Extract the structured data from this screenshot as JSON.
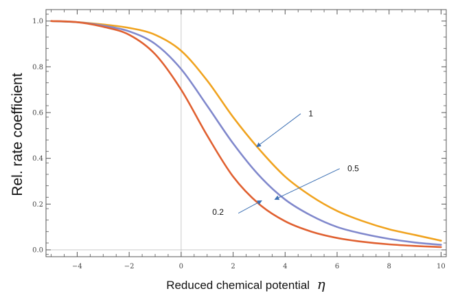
{
  "chart_data": {
    "type": "line",
    "xlabel": "Reduced chemical potential",
    "xlabel_symbol": "η",
    "ylabel": "Rel. rate coefficient",
    "xlim": [
      -5.2,
      10.2
    ],
    "ylim": [
      -0.03,
      1.05
    ],
    "x_ticks": [
      -4,
      -2,
      0,
      2,
      4,
      6,
      8,
      10
    ],
    "x_tick_labels": [
      "−4",
      "−2",
      "0",
      "2",
      "4",
      "6",
      "8",
      "10"
    ],
    "y_ticks": [
      0.0,
      0.2,
      0.4,
      0.6,
      0.8,
      1.0
    ],
    "y_tick_labels": [
      "0.0",
      "0.2",
      "0.4",
      "0.6",
      "0.8",
      "1.0"
    ],
    "grid": false,
    "reference_lines": [
      {
        "axis": "x",
        "value": 0
      },
      {
        "axis": "y",
        "value": 0
      }
    ],
    "series": [
      {
        "label": "1",
        "color": "#f0a31f",
        "x": [
          -5,
          -4,
          -3,
          -2,
          -1,
          0,
          1,
          2,
          3,
          4,
          5,
          6,
          7,
          8,
          9,
          10
        ],
        "y": [
          1.0,
          0.995,
          0.985,
          0.97,
          0.94,
          0.87,
          0.74,
          0.58,
          0.44,
          0.32,
          0.235,
          0.17,
          0.125,
          0.09,
          0.065,
          0.04
        ]
      },
      {
        "label": "0.5",
        "color": "#8088cc",
        "x": [
          -5,
          -4,
          -3,
          -2,
          -1,
          0,
          1,
          2,
          3,
          4,
          5,
          6,
          7,
          8,
          9,
          10
        ],
        "y": [
          1.0,
          0.995,
          0.98,
          0.955,
          0.9,
          0.79,
          0.63,
          0.465,
          0.325,
          0.22,
          0.15,
          0.1,
          0.07,
          0.048,
          0.032,
          0.022
        ]
      },
      {
        "label": "0.2",
        "color": "#e06030",
        "x": [
          -5,
          -4,
          -3,
          -2,
          -1,
          0,
          1,
          2,
          3,
          4,
          5,
          6,
          7,
          8,
          9,
          10
        ],
        "y": [
          1.0,
          0.995,
          0.975,
          0.94,
          0.855,
          0.7,
          0.5,
          0.32,
          0.2,
          0.125,
          0.08,
          0.052,
          0.035,
          0.024,
          0.017,
          0.012
        ]
      }
    ],
    "annotations": [
      {
        "text": "1",
        "series": "1",
        "arrow_from": [
          4.6,
          0.595
        ],
        "arrow_to": [
          2.9,
          0.45
        ],
        "text_at": [
          4.9,
          0.595
        ]
      },
      {
        "text": "0.5",
        "series": "0.5",
        "arrow_from": [
          6.1,
          0.355
        ],
        "arrow_to": [
          3.6,
          0.22
        ],
        "text_at": [
          6.4,
          0.355
        ]
      },
      {
        "text": "0.2",
        "series": "0.2",
        "arrow_from": [
          2.2,
          0.16
        ],
        "arrow_to": [
          3.1,
          0.215
        ],
        "text_at": [
          1.2,
          0.165
        ]
      }
    ]
  }
}
